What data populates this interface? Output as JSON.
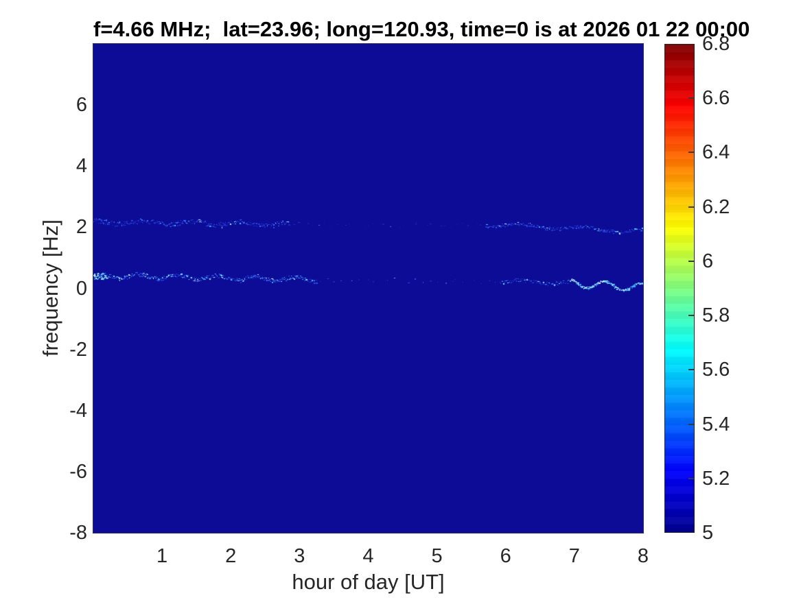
{
  "figure": {
    "background": "#ffffff"
  },
  "chart_data": {
    "type": "heatmap",
    "title": "f=4.66 MHz;  lat=23.96; long=120.93, time=0 is at 2026 01 22 00:00",
    "xlabel": "hour of day [UT]",
    "ylabel": "frequency [Hz]",
    "xlim": [
      0,
      8
    ],
    "ylim": [
      -8,
      8
    ],
    "x_ticks": [
      "1",
      "2",
      "3",
      "4",
      "5",
      "6",
      "7",
      "8"
    ],
    "y_ticks": [
      "6",
      "4",
      "2",
      "0",
      "-2",
      "-4",
      "-6",
      "-8"
    ],
    "grid": false,
    "legend": "none",
    "background_color": "#0c0c96",
    "background_value": 5,
    "colorbar": {
      "position": "right",
      "min": 5,
      "max": 6.8,
      "tick_labels": [
        "6.8",
        "6.6",
        "6.4",
        "6.2",
        "6",
        "5.8",
        "5.6",
        "5.4",
        "5.2",
        "5"
      ],
      "colormap": "jet",
      "gradient_stops": [
        [
          "#00008f",
          0
        ],
        [
          "#0000ff",
          0.125
        ],
        [
          "#00ffff",
          0.375
        ],
        [
          "#ffff00",
          0.625
        ],
        [
          "#ff0000",
          0.875
        ],
        [
          "#800000",
          1
        ]
      ]
    },
    "seed": 20260122,
    "bands": [
      {
        "name": "upper-band-early",
        "h0": 0.0,
        "h1": 2.85,
        "f0": 2.18,
        "f1": 2.1,
        "density": 95,
        "jitter": 0.16,
        "wiggle": 0.05,
        "wfreq": 9,
        "phase": 1.2,
        "palette": [
          [
            "#1c2cc6",
            5
          ],
          [
            "#2e4bee",
            3
          ],
          [
            "#3f76ff",
            1.6
          ],
          [
            "#37c6f2",
            0.7
          ],
          [
            "#bff4ff",
            0.15
          ]
        ]
      },
      {
        "name": "upper-band-mid",
        "h0": 2.85,
        "h1": 5.7,
        "f0": 2.1,
        "f1": 2.06,
        "density": 11,
        "jitter": 0.14,
        "wiggle": 0.03,
        "wfreq": 7,
        "phase": 0.4,
        "palette": [
          [
            "#18249f",
            6
          ],
          [
            "#2436d0",
            2
          ],
          [
            "#3f76ff",
            0.5
          ]
        ]
      },
      {
        "name": "upper-band-late",
        "h0": 5.7,
        "h1": 8.0,
        "f0": 2.12,
        "f1": 1.87,
        "density": 85,
        "jitter": 0.1,
        "wiggle": 0.06,
        "wfreq": 7,
        "phase": 2.1,
        "palette": [
          [
            "#2133cf",
            4
          ],
          [
            "#2e55f0",
            3
          ],
          [
            "#3fd0f5",
            1.1
          ],
          [
            "#ccf8ff",
            0.35
          ]
        ]
      },
      {
        "name": "carrier-band-start",
        "h0": 0.0,
        "h1": 0.2,
        "f0": 0.4,
        "f1": 0.4,
        "density": 380,
        "jitter": 0.22,
        "wiggle": 0.0,
        "wfreq": 0,
        "phase": 0.0,
        "palette": [
          [
            "#8ef2ff",
            3
          ],
          [
            "#e8ffff",
            2
          ],
          [
            "#37c6f2",
            2
          ],
          [
            "#2e4bee",
            2
          ]
        ]
      },
      {
        "name": "carrier-band-early",
        "h0": 0.2,
        "h1": 3.25,
        "f0": 0.42,
        "f1": 0.3,
        "density": 115,
        "jitter": 0.13,
        "wiggle": 0.07,
        "wfreq": 11,
        "phase": 0.7,
        "palette": [
          [
            "#2135d6",
            4
          ],
          [
            "#2e55f0",
            3
          ],
          [
            "#37a9f0",
            2
          ],
          [
            "#7fe8ff",
            1.4
          ],
          [
            "#dcffff",
            0.45
          ]
        ]
      },
      {
        "name": "carrier-band-mid",
        "h0": 3.25,
        "h1": 5.9,
        "f0": 0.3,
        "f1": 0.22,
        "density": 9,
        "jitter": 0.16,
        "wiggle": 0.0,
        "wfreq": 0,
        "phase": 0.0,
        "palette": [
          [
            "#1b28ad",
            5
          ],
          [
            "#3350e8",
            1.5
          ],
          [
            "#6fb9f5",
            0.4
          ]
        ]
      },
      {
        "name": "carrier-band-rise",
        "h0": 5.9,
        "h1": 6.95,
        "f0": 0.26,
        "f1": 0.18,
        "density": 75,
        "jitter": 0.11,
        "wiggle": 0.05,
        "wfreq": 9,
        "phase": 1.9,
        "palette": [
          [
            "#2135d6",
            4
          ],
          [
            "#2e55f0",
            3
          ],
          [
            "#37a9f0",
            1.6
          ],
          [
            "#7fe8ff",
            0.9
          ]
        ]
      },
      {
        "name": "carrier-band-late",
        "h0": 6.95,
        "h1": 8.0,
        "f0": 0.18,
        "f1": 0.04,
        "density": 270,
        "jitter": 0.06,
        "wiggle": 0.13,
        "wfreq": 12,
        "phase": 0.3,
        "palette": [
          [
            "#37a9f0",
            3
          ],
          [
            "#7fe8ff",
            3
          ],
          [
            "#eaffff",
            2
          ],
          [
            "#2e55f0",
            2
          ]
        ]
      }
    ]
  }
}
